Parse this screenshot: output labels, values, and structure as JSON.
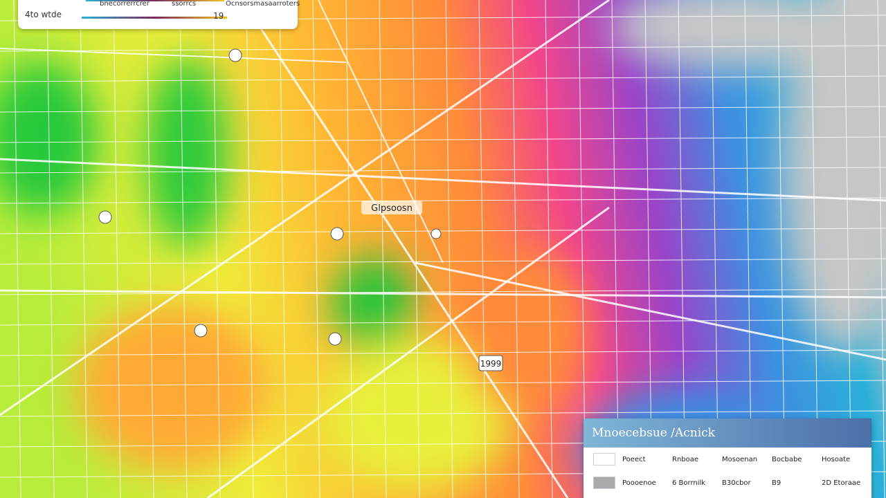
{
  "legend": {
    "title": "4to wtde",
    "items": [
      "bnecorrerrcrer",
      "ssorrcs",
      "19"
    ],
    "note": "Ocnsorsmasaarroters"
  },
  "map_labels": [
    "Glpsoosn",
    "1999"
  ],
  "panel": {
    "title": "Mnoecebsue /Acnick",
    "header": [
      "Poeect",
      "Rnboae",
      "Mosoenan",
      "Bocbabe",
      "Hosoate"
    ],
    "rows": [
      [
        "Poooenoe",
        "6 Borrnilk",
        "B30cbor",
        "B9",
        "2D Etoraae"
      ]
    ]
  }
}
